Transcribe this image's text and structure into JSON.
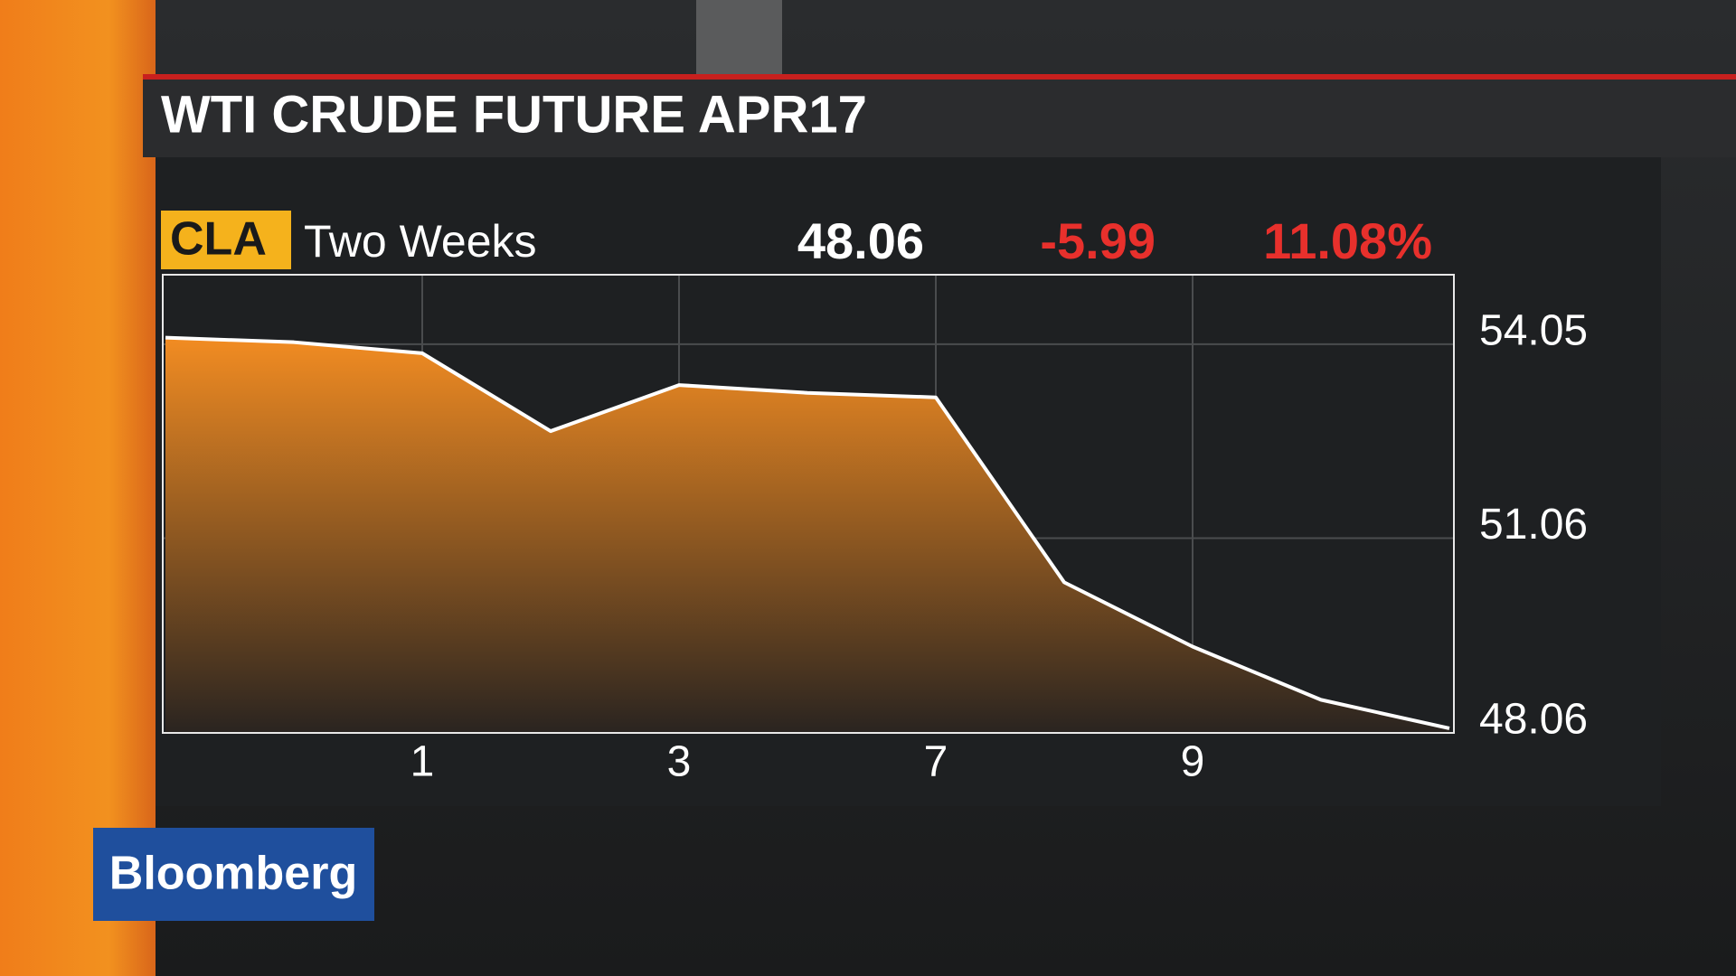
{
  "brand": "Bloomberg",
  "chart_data": {
    "type": "area",
    "title": "WTI CRUDE FUTURE  APR17",
    "quote": {
      "ticker": "CLA",
      "period": "Two Weeks",
      "last": "48.06",
      "change": "-5.99",
      "change_pct": "11.08%"
    },
    "categories": [
      null,
      null,
      "1",
      null,
      "3",
      null,
      "7",
      null,
      "9",
      null,
      null
    ],
    "series": [
      {
        "name": "CLA",
        "color": "#f28c22",
        "values": [
          54.15,
          54.08,
          53.91,
          52.71,
          53.42,
          53.3,
          53.23,
          50.38,
          49.39,
          48.57,
          48.13
        ]
      }
    ],
    "ylim": [
      48.06,
      55.12
    ],
    "yticks": [
      54.05,
      51.06,
      48.06
    ],
    "grid": true
  }
}
